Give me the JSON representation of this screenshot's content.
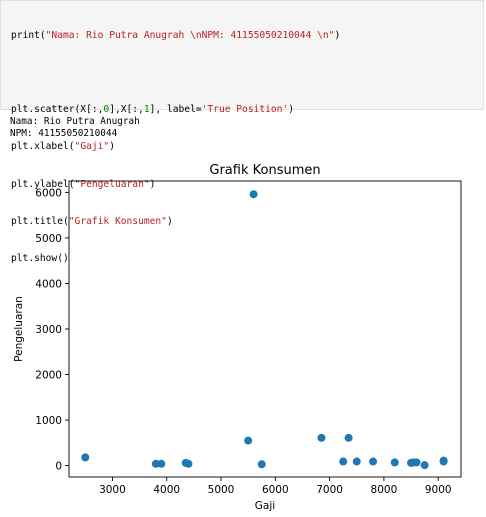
{
  "code": {
    "line1": {
      "fn": "print(",
      "str": "\"Nama: Rio Putra Anugrah \\nNPM: 41155050210044 \\n\"",
      "end": ")"
    },
    "line2": {
      "a": "plt.scatter(X[:,",
      "n0": "0",
      "b": "],X[:,",
      "n1": "1",
      "c": "], label=",
      "str": "'True Position'",
      "end": ")"
    },
    "line3": {
      "fn": "plt.xlabel(",
      "str": "\"Gaji\"",
      "end": ")"
    },
    "line4": {
      "fn": "plt.ylabel(",
      "str": "\"Pengeluaran\"",
      "end": ")"
    },
    "line5": {
      "fn": "plt.title(",
      "str": "\"Grafik Konsumen\"",
      "end": ")"
    },
    "line6": {
      "fn": "plt.show()"
    }
  },
  "output": {
    "line1": "Nama: Rio Putra Anugrah",
    "line2": "NPM: 41155050210044"
  },
  "chart_data": {
    "type": "scatter",
    "title": "Grafik Konsumen",
    "xlabel": "Gaji",
    "ylabel": "Pengeluaran",
    "xlim": [
      2200,
      9420
    ],
    "ylim": [
      -250,
      6250
    ],
    "xticks": [
      3000,
      4000,
      5000,
      6000,
      7000,
      8000,
      9000
    ],
    "yticks": [
      0,
      1000,
      2000,
      3000,
      4000,
      5000,
      6000
    ],
    "grid": false,
    "marker_color": "#1f77b4",
    "series": [
      {
        "x": [
          2500,
          3800,
          3900,
          4350,
          4400,
          5500,
          5600,
          5750,
          6850,
          7250,
          7350,
          7500,
          7800,
          8200,
          8500,
          8550,
          8600,
          8750,
          9100,
          9100
        ],
        "y": [
          180,
          40,
          40,
          60,
          40,
          550,
          5960,
          30,
          610,
          90,
          610,
          90,
          90,
          70,
          60,
          70,
          70,
          10,
          110,
          90
        ]
      }
    ]
  }
}
